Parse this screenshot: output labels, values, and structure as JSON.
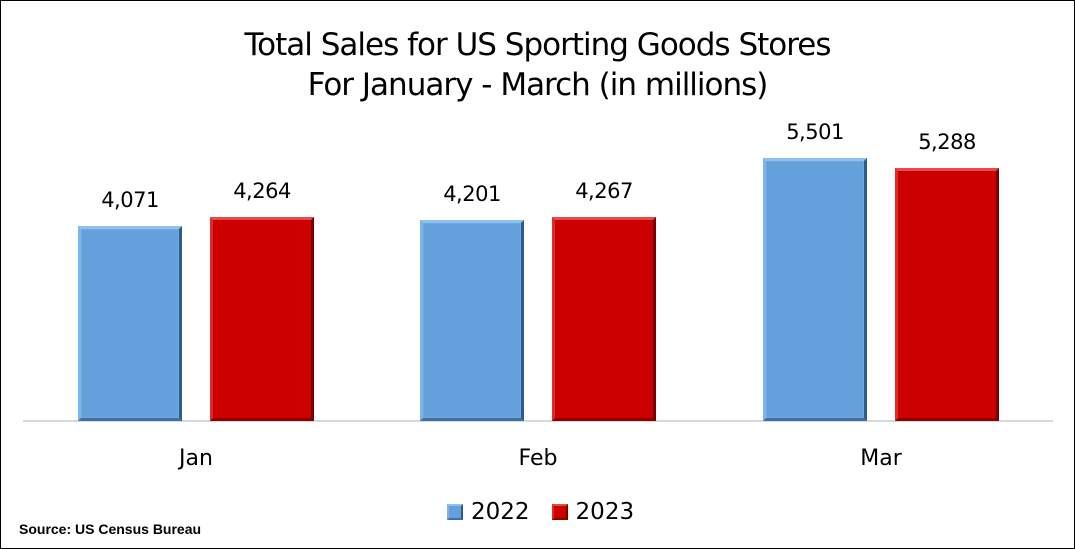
{
  "chart_data": {
    "type": "bar",
    "title": "Total Sales for US Sporting Goods Stores",
    "subtitle": "For January - March (in millions)",
    "categories": [
      "Jan",
      "Feb",
      "Mar"
    ],
    "series": [
      {
        "name": "2022",
        "color": "#64a1dc",
        "values": [
          4071,
          4201,
          5501
        ],
        "labels": [
          "4,071",
          "4,201",
          "5,501"
        ]
      },
      {
        "name": "2023",
        "color": "#cc0000",
        "values": [
          4264,
          4267,
          5288
        ],
        "labels": [
          "4,264",
          "4,267",
          "5,288"
        ]
      }
    ],
    "xlabel": "",
    "ylabel": "",
    "ylim": [
      0,
      5501
    ],
    "grid": false,
    "y_axis_visible": false,
    "legend_position": "bottom",
    "data_labels": true,
    "annotations": [
      "Source: US Census Bureau"
    ]
  },
  "title_lines": [
    "Total Sales for US Sporting Goods Stores",
    "For January - March (in millions)"
  ],
  "legend": [
    {
      "label": "2022",
      "color": "#64a1dc"
    },
    {
      "label": "2023",
      "color": "#cc0000"
    }
  ],
  "source": "Source: US Census Bureau"
}
